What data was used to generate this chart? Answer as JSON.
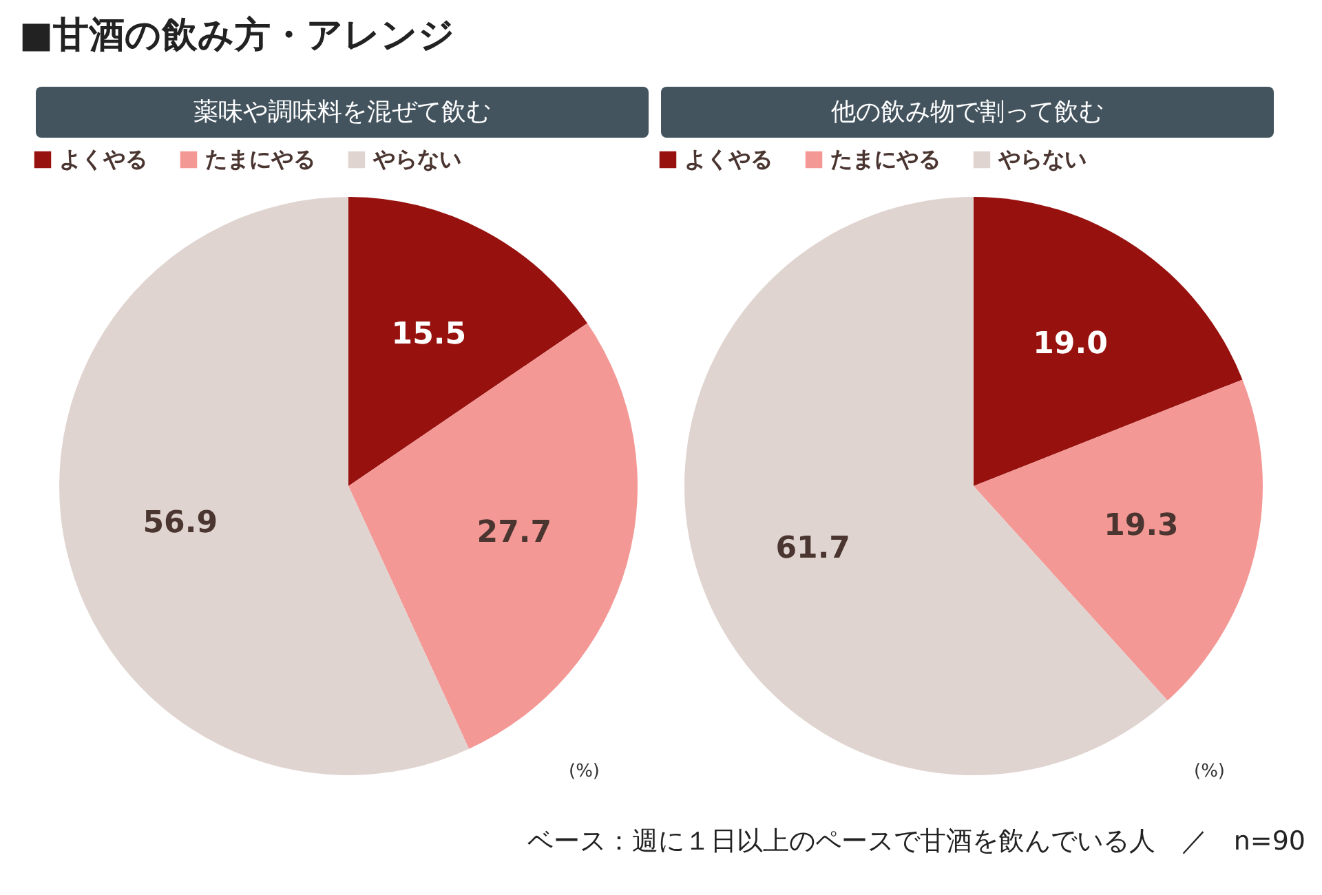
{
  "chart_data": [
    {
      "type": "pie",
      "title": "■甘酒の飲み方・アレンジ",
      "subtitle": "薬味や調味料を混ぜて飲む",
      "categories": [
        "よくやる",
        "たまにやる",
        "やらない"
      ],
      "values": [
        15.5,
        27.7,
        56.9
      ],
      "value_labels": [
        "15.5",
        "27.7",
        "56.9"
      ],
      "colors": [
        "#97120f",
        "#f49895",
        "#e0d4d0"
      ],
      "legend": "top",
      "annotations": [
        "(%)"
      ]
    },
    {
      "type": "pie",
      "subtitle": "他の飲み物で割って飲む",
      "categories": [
        "よくやる",
        "たまにやる",
        "やらない"
      ],
      "values": [
        19.0,
        19.3,
        61.7
      ],
      "value_labels": [
        "19.0",
        "19.3",
        "61.7"
      ],
      "colors": [
        "#97120f",
        "#f49895",
        "#e0d4d0"
      ],
      "legend": "top",
      "annotations": [
        "(%)",
        "ベース：週に１日以上のペースで甘酒を飲んでいる人　／　n=90"
      ]
    }
  ]
}
